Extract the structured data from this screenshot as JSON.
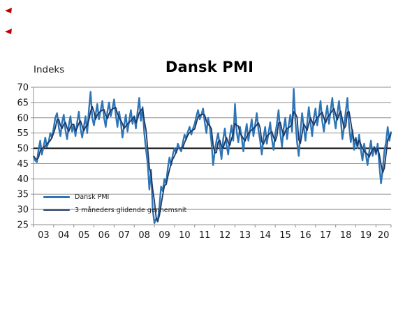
{
  "artifacts": {
    "marker_color": "#C00000"
  },
  "chart_data": {
    "type": "line",
    "title": "Dansk PMI",
    "ylabel": "Indeks",
    "x_frequency": "monthly",
    "x_start": "2003-01",
    "x_end": "2020-10",
    "x_year_labels": [
      "03",
      "04",
      "05",
      "06",
      "07",
      "08",
      "09",
      "10",
      "11",
      "12",
      "13",
      "14",
      "15",
      "16",
      "17",
      "18",
      "19",
      "20"
    ],
    "ylim": [
      25,
      70
    ],
    "ytick_step": 5,
    "grid": true,
    "reference_line": {
      "value": 50,
      "color": "#000000"
    },
    "legend_position": "inside-bottom-left",
    "colors": {
      "grid": "#8F8F8F",
      "axis": "#8F8F8F",
      "text": "#1A1A1A"
    },
    "series": [
      {
        "name": "Dansk PMI",
        "color": "#2E75B6",
        "values": [
          47.5,
          46.0,
          45.5,
          49.5,
          52.5,
          48.0,
          50.5,
          53.5,
          50.5,
          52.0,
          55.0,
          53.5,
          56.5,
          60.0,
          61.5,
          57.0,
          54.0,
          58.5,
          61.0,
          56.0,
          53.0,
          57.5,
          60.5,
          55.5,
          57.5,
          54.0,
          58.5,
          62.0,
          56.5,
          53.5,
          57.0,
          60.5,
          55.0,
          62.5,
          68.5,
          60.0,
          57.5,
          61.0,
          64.5,
          59.5,
          62.5,
          65.5,
          60.0,
          57.0,
          62.0,
          65.0,
          60.5,
          63.0,
          66.0,
          61.0,
          57.0,
          62.0,
          58.5,
          53.5,
          57.5,
          61.0,
          55.5,
          59.0,
          62.5,
          58.0,
          60.5,
          56.5,
          62.0,
          66.5,
          59.0,
          63.5,
          55.0,
          49.5,
          45.0,
          36.5,
          43.0,
          30.0,
          25.5,
          27.0,
          26.0,
          31.0,
          37.5,
          36.0,
          40.0,
          38.5,
          43.5,
          47.0,
          44.5,
          48.0,
          50.0,
          48.5,
          51.5,
          50.0,
          49.0,
          52.0,
          54.5,
          53.0,
          55.5,
          57.0,
          54.5,
          56.5,
          58.0,
          60.5,
          62.5,
          59.5,
          61.0,
          63.0,
          58.5,
          55.0,
          60.0,
          57.0,
          52.0,
          44.5,
          49.0,
          52.5,
          55.0,
          50.5,
          46.5,
          53.0,
          56.5,
          51.0,
          48.0,
          54.0,
          57.5,
          52.5,
          64.5,
          55.5,
          52.0,
          57.0,
          53.5,
          49.0,
          54.5,
          58.0,
          52.5,
          56.0,
          59.5,
          54.0,
          57.5,
          61.5,
          56.0,
          52.5,
          48.0,
          53.5,
          57.0,
          51.5,
          55.0,
          58.5,
          53.0,
          49.5,
          54.5,
          58.0,
          62.5,
          55.0,
          50.5,
          56.5,
          60.0,
          53.0,
          57.5,
          61.0,
          55.5,
          69.5,
          59.0,
          52.0,
          47.5,
          55.5,
          61.5,
          57.0,
          52.5,
          58.0,
          63.5,
          58.5,
          54.0,
          60.0,
          63.0,
          57.5,
          61.0,
          65.5,
          59.0,
          55.5,
          60.5,
          64.0,
          58.0,
          62.5,
          66.5,
          60.0,
          56.5,
          61.5,
          65.5,
          59.5,
          53.0,
          57.0,
          62.0,
          66.5,
          57.5,
          52.0,
          56.0,
          49.5,
          53.5,
          50.0,
          54.5,
          49.5,
          46.0,
          51.5,
          48.0,
          44.5,
          49.0,
          52.5,
          47.5,
          50.5,
          48.0,
          51.5,
          44.5,
          38.5,
          43.0,
          49.0,
          52.0,
          57.0,
          52.5,
          55.5
        ]
      },
      {
        "name": "3 måneders glidende gennemsnit",
        "color": "#1F3864",
        "derived": "3-month moving average of Dansk PMI"
      }
    ]
  }
}
